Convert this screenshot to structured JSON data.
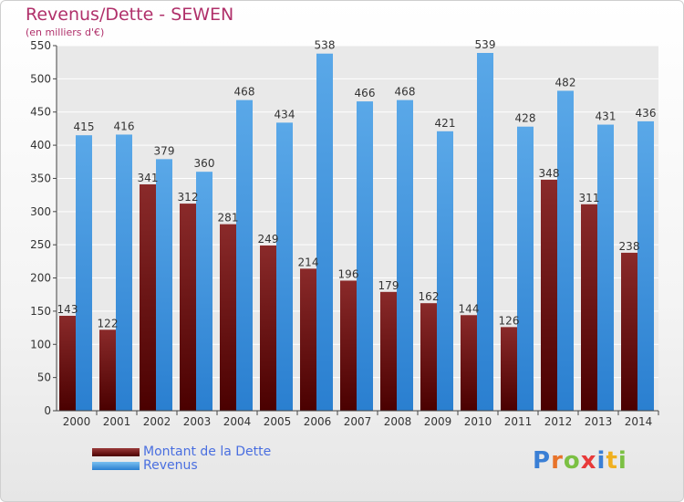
{
  "title": "Revenus/Dette - SEWEN",
  "subtitle": "(en milliers d'€)",
  "colors": {
    "debt_top": "#8a2a2a",
    "debt_bottom": "#4a0000",
    "revenue_top": "#5aa8e8",
    "revenue_bottom": "#2a7fd0",
    "grid": "#ffffff",
    "plot_bg": "#e9e9e9"
  },
  "logo": {
    "letters": [
      "P",
      "r",
      "o",
      "x",
      "i",
      "t",
      "i"
    ],
    "colors": [
      "#3a7fd5",
      "#e8732a",
      "#7bc043",
      "#e83a3a",
      "#3a7fd5",
      "#f0b020",
      "#7bc043"
    ]
  },
  "legend": [
    {
      "label": "Montant de la Dette",
      "color": "#6a1010"
    },
    {
      "label": "Revenus",
      "color": "#4aa0e8"
    }
  ],
  "chart_data": {
    "type": "bar",
    "title": "Revenus/Dette - SEWEN",
    "subtitle": "(en milliers d'€)",
    "categories": [
      "2000",
      "2001",
      "2002",
      "2003",
      "2004",
      "2005",
      "2006",
      "2007",
      "2008",
      "2009",
      "2010",
      "2011",
      "2012",
      "2013",
      "2014"
    ],
    "series": [
      {
        "name": "Montant de la Dette",
        "values": [
          143,
          122,
          341,
          312,
          281,
          249,
          214,
          196,
          179,
          162,
          144,
          126,
          348,
          311,
          238
        ]
      },
      {
        "name": "Revenus",
        "values": [
          415,
          416,
          379,
          360,
          468,
          434,
          538,
          466,
          468,
          421,
          539,
          428,
          482,
          431,
          436
        ]
      }
    ],
    "ylim": [
      0,
      550
    ],
    "yticks": [
      0,
      50,
      100,
      150,
      200,
      250,
      300,
      350,
      400,
      450,
      500,
      550
    ],
    "grid": true,
    "legend_position": "bottom-left"
  }
}
